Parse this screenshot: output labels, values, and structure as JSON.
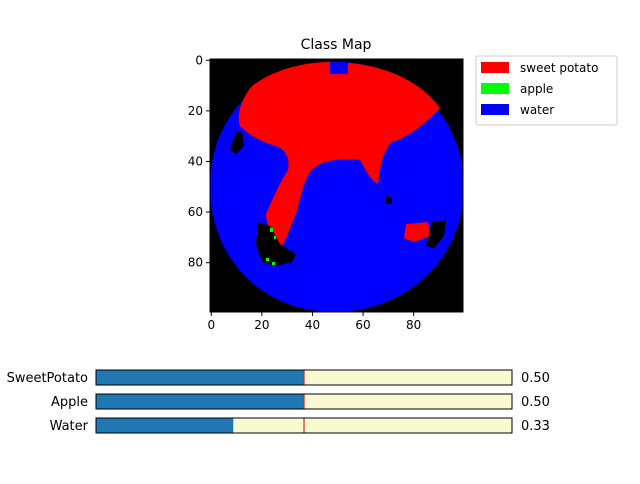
{
  "chart_data": [
    {
      "type": "heatmap",
      "title": "Class Map",
      "x_ticks": [
        "0",
        "20",
        "40",
        "60",
        "80"
      ],
      "y_ticks": [
        "0",
        "20",
        "40",
        "60",
        "80"
      ],
      "xlim": [
        0,
        100
      ],
      "ylim": [
        0,
        100
      ],
      "legend_placement": "outside-top-right",
      "classes": [
        {
          "name": "sweet potato",
          "color": "#ff0000"
        },
        {
          "name": "apple",
          "color": "#00ff00"
        },
        {
          "name": "water",
          "color": "#0000ff"
        }
      ],
      "background_color": "#000000"
    },
    {
      "type": "bar",
      "orientation": "horizontal",
      "categories": [
        "SweetPotato",
        "Apple",
        "Water"
      ],
      "values": [
        0.5,
        0.5,
        0.33
      ],
      "value_labels": [
        "0.50",
        "0.50",
        "0.33"
      ],
      "xlim": [
        0,
        1
      ],
      "threshold": 0.5,
      "bar_color": "#1f77b4",
      "track_color": "#fafad2",
      "threshold_color": "#d62728"
    }
  ]
}
